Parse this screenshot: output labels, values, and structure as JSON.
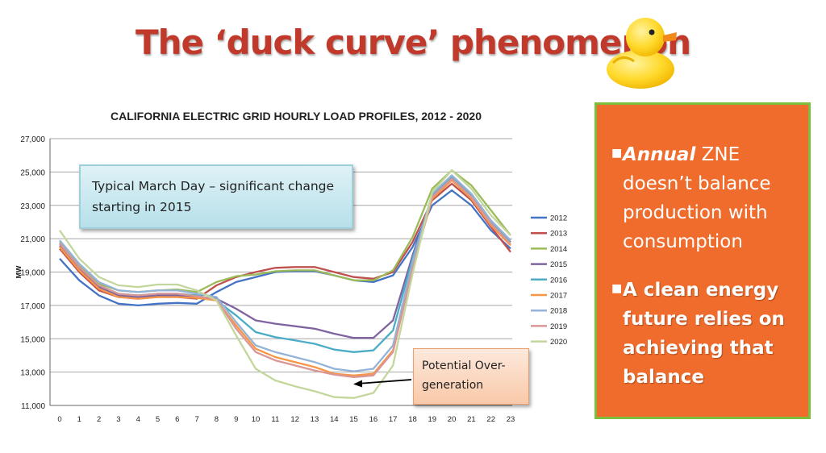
{
  "slide_title": "The ‘duck curve’ phenomenon",
  "callout_text": "Typical March Day – significant change starting in 2015",
  "overgen_text": "Potential Over-generation",
  "bullets": [
    {
      "emphasis": "Annual",
      "text": " ZNE doesn’t balance production with consumption"
    },
    {
      "text": "A clean energy future relies on achieving that balance"
    }
  ],
  "chart_data": {
    "type": "line",
    "title": "CALIFORNIA ELECTRIC GRID HOURLY LOAD PROFILES, 2012 - 2020",
    "xlabel": "",
    "ylabel": "MW",
    "x": [
      0,
      1,
      2,
      3,
      4,
      5,
      6,
      7,
      8,
      9,
      10,
      11,
      12,
      13,
      14,
      15,
      16,
      17,
      18,
      19,
      20,
      21,
      22,
      23
    ],
    "ylim": [
      11000,
      27000
    ],
    "yticks": [
      "11,000",
      "13,000",
      "15,000",
      "17,000",
      "19,000",
      "21,000",
      "23,000",
      "25,000",
      "27,000"
    ],
    "grid": true,
    "legend": "right",
    "series": [
      {
        "name": "2012",
        "color": "#4472c4",
        "values": [
          19800,
          18500,
          17600,
          17100,
          17000,
          17100,
          17150,
          17100,
          17800,
          18400,
          18700,
          19000,
          19050,
          19050,
          18800,
          18500,
          18400,
          18800,
          20500,
          23000,
          23900,
          23000,
          21500,
          20400
        ]
      },
      {
        "name": "2013",
        "color": "#c0504d",
        "values": [
          20400,
          19000,
          17900,
          17500,
          17400,
          17500,
          17500,
          17400,
          18200,
          18700,
          19000,
          19250,
          19300,
          19300,
          19000,
          18700,
          18600,
          19000,
          20800,
          23300,
          24300,
          23300,
          21700,
          20200
        ]
      },
      {
        "name": "2014",
        "color": "#9bbb59",
        "values": [
          20800,
          19400,
          18300,
          17900,
          17800,
          17900,
          17950,
          17800,
          18400,
          18750,
          18850,
          19050,
          19100,
          19100,
          18800,
          18500,
          18500,
          19100,
          21100,
          24000,
          25100,
          24200,
          22700,
          21200
        ]
      },
      {
        "name": "2015",
        "color": "#8064a2",
        "values": [
          20600,
          19200,
          18100,
          17600,
          17500,
          17600,
          17600,
          17500,
          17400,
          16800,
          16100,
          15900,
          15750,
          15600,
          15300,
          15050,
          15050,
          16100,
          20000,
          23500,
          24600,
          23600,
          22000,
          20800
        ]
      },
      {
        "name": "2016",
        "color": "#4bacc6",
        "values": [
          20700,
          19300,
          18200,
          17700,
          17600,
          17700,
          17700,
          17600,
          17300,
          16400,
          15400,
          15100,
          14900,
          14700,
          14350,
          14200,
          14300,
          15500,
          19800,
          23600,
          24700,
          23600,
          22000,
          20800
        ]
      },
      {
        "name": "2017",
        "color": "#f79646",
        "values": [
          20500,
          19100,
          18000,
          17500,
          17400,
          17500,
          17500,
          17450,
          17300,
          15800,
          14400,
          13900,
          13600,
          13300,
          12900,
          12800,
          12900,
          14300,
          19300,
          23400,
          24500,
          23400,
          21800,
          20600
        ]
      },
      {
        "name": "2018",
        "color": "#95b3d7",
        "values": [
          20900,
          19500,
          18400,
          17900,
          17800,
          17900,
          17900,
          17700,
          17500,
          16000,
          14600,
          14200,
          13900,
          13600,
          13200,
          13050,
          13200,
          14600,
          19600,
          23700,
          24800,
          23700,
          22100,
          20900
        ]
      },
      {
        "name": "2019",
        "color": "#d99694",
        "values": [
          20700,
          19300,
          18200,
          17700,
          17600,
          17700,
          17700,
          17550,
          17350,
          15600,
          14200,
          13700,
          13400,
          13100,
          12850,
          12700,
          12800,
          14200,
          19200,
          23500,
          24600,
          23500,
          21900,
          20700
        ]
      },
      {
        "name": "2020",
        "color": "#c3d69b",
        "values": [
          21500,
          19800,
          18700,
          18200,
          18100,
          18250,
          18250,
          17900,
          17300,
          15200,
          13200,
          12500,
          12150,
          11850,
          11500,
          11450,
          11750,
          13400,
          18900,
          23800,
          25100,
          24000,
          22400,
          21200
        ]
      }
    ]
  },
  "colors": {
    "title": "#c0392b",
    "orange_box": "#ef6c2c",
    "orange_border": "#7cbf3a"
  }
}
